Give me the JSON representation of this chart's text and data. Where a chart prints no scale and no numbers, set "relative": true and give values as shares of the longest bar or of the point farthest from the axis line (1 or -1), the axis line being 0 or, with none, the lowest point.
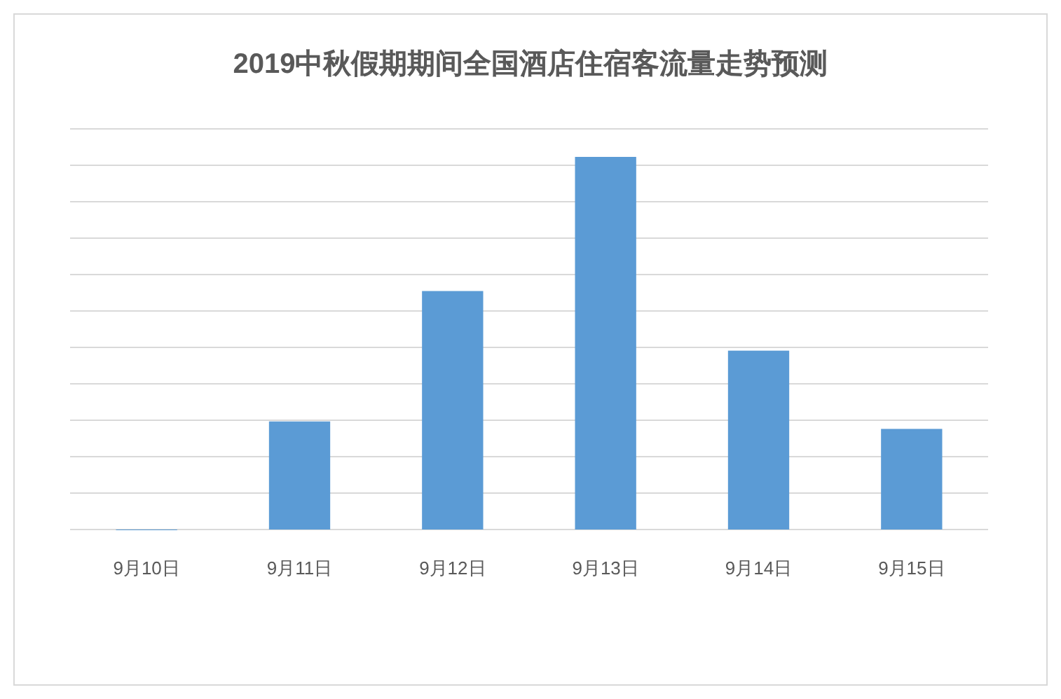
{
  "chart_data": {
    "type": "bar",
    "title": "2019中秋假期期间全国酒店住宿客流量走势预测",
    "categories": [
      "9月10日",
      "9月11日",
      "9月12日",
      "9月13日",
      "9月14日",
      "9月15日"
    ],
    "values": [
      0,
      0.29,
      0.64,
      1,
      0.48,
      0.27
    ],
    "color": "#5b9bd5",
    "relative": true,
    "grid": "y"
  }
}
